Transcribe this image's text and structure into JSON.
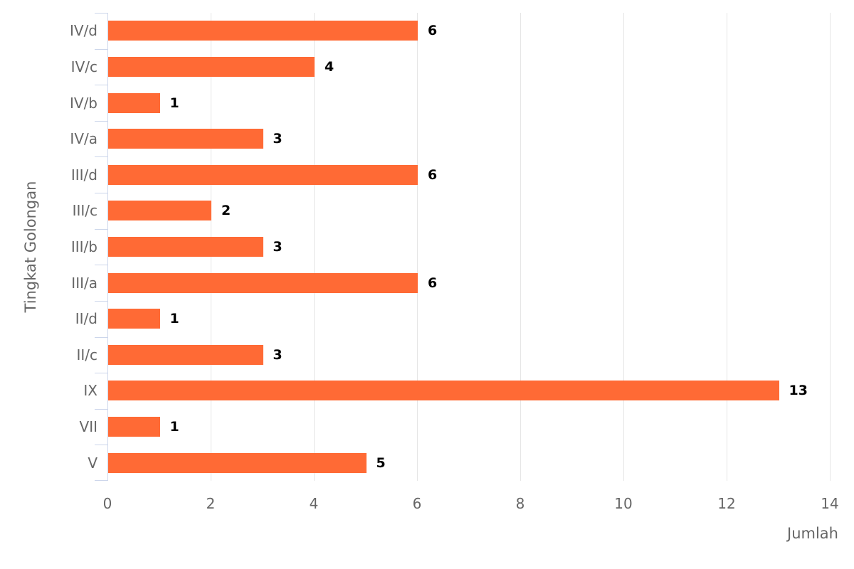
{
  "chart_data": {
    "type": "bar",
    "orientation": "horizontal",
    "title": "",
    "categories": [
      "IV/d",
      "IV/c",
      "IV/b",
      "IV/a",
      "III/d",
      "III/c",
      "III/b",
      "III/a",
      "II/d",
      "II/c",
      "IX",
      "VII",
      "V"
    ],
    "values": [
      6,
      4,
      1,
      3,
      6,
      2,
      3,
      6,
      1,
      3,
      13,
      1,
      5
    ],
    "xlabel": "Jumlah",
    "ylabel": "Tingkat Golongan",
    "xlim": [
      0,
      14
    ],
    "xticks": [
      0,
      2,
      4,
      6,
      8,
      10,
      12,
      14
    ],
    "grid": true,
    "legend": false,
    "colors": {
      "bar": "#ff6a35",
      "axis_line": "#ccd6eb",
      "grid": "#e6e6e6",
      "axis_label": "#666666",
      "value_label": "#000000",
      "background": "#ffffff"
    }
  }
}
